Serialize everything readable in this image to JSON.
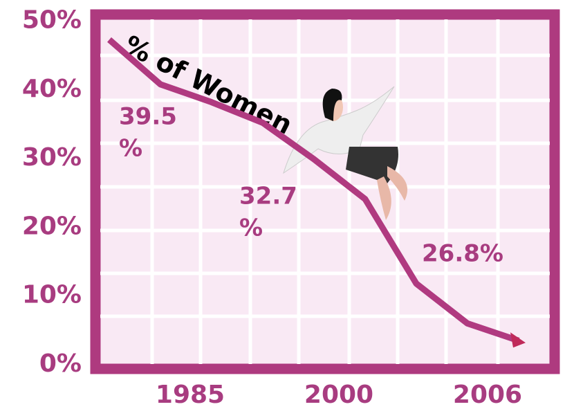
{
  "chart_data": {
    "type": "line",
    "title": "% of Women",
    "x_axis_labels": [
      "1985",
      "2000",
      "2006"
    ],
    "series": [
      {
        "name": "% of Women",
        "color": "#b03a80",
        "values": [
          47.3,
          40.8,
          38.2,
          35.2,
          29.9,
          24.1,
          11.8,
          6.0,
          3.5
        ]
      }
    ],
    "ylim": [
      0,
      50
    ],
    "yticks": [
      {
        "value": 0,
        "label": "0%"
      },
      {
        "value": 10,
        "label": "10%"
      },
      {
        "value": 20,
        "label": "20%"
      },
      {
        "value": 30,
        "label": "30%"
      },
      {
        "value": 40,
        "label": "40%"
      },
      {
        "value": 50,
        "label": "50%"
      }
    ],
    "annotations": [
      [
        "39.5",
        "%"
      ],
      [
        "32.7",
        "%"
      ],
      [
        "26.8%"
      ]
    ]
  }
}
